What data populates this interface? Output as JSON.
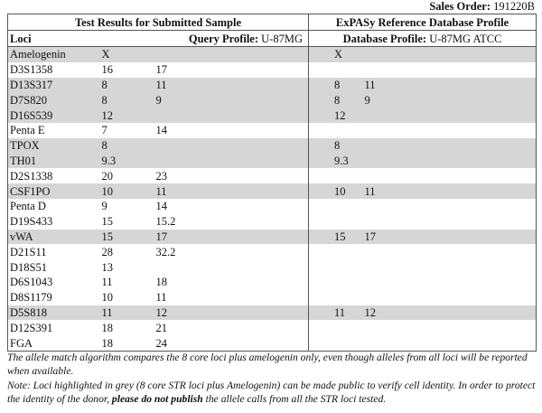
{
  "header": {
    "sales_order_label": "Sales Order:",
    "sales_order": "191220B"
  },
  "table": {
    "section_titles": [
      "Test Results for Submitted Sample",
      "ExPASy Reference Database Profile"
    ],
    "column_headers": {
      "loci": "Loci",
      "query_label": "Query Profile:",
      "query_name": "U-87MG",
      "database_label": "Database Profile:",
      "database_name": "U-87MG ATCC"
    },
    "rows": [
      {
        "locus": "Amelogenin",
        "query": [
          "X"
        ],
        "database": [
          "X"
        ],
        "highlight": true
      },
      {
        "locus": "D3S1358",
        "query": [
          "16",
          "17"
        ],
        "database": [],
        "highlight": false
      },
      {
        "locus": "D13S317",
        "query": [
          "8",
          "11"
        ],
        "database": [
          "8",
          "11"
        ],
        "highlight": true
      },
      {
        "locus": "D7S820",
        "query": [
          "8",
          "9"
        ],
        "database": [
          "8",
          "9"
        ],
        "highlight": true
      },
      {
        "locus": "D16S539",
        "query": [
          "12"
        ],
        "database": [
          "12"
        ],
        "highlight": true
      },
      {
        "locus": "Penta E",
        "query": [
          "7",
          "14"
        ],
        "database": [],
        "highlight": false
      },
      {
        "locus": "TPOX",
        "query": [
          "8"
        ],
        "database": [
          "8"
        ],
        "highlight": true
      },
      {
        "locus": "TH01",
        "query": [
          "9.3"
        ],
        "database": [
          "9.3"
        ],
        "highlight": true
      },
      {
        "locus": "D2S1338",
        "query": [
          "20",
          "23"
        ],
        "database": [],
        "highlight": false
      },
      {
        "locus": "CSF1PO",
        "query": [
          "10",
          "11"
        ],
        "database": [
          "10",
          "11"
        ],
        "highlight": true
      },
      {
        "locus": "Penta D",
        "query": [
          "9",
          "14"
        ],
        "database": [],
        "highlight": false
      },
      {
        "locus": "D19S433",
        "query": [
          "15",
          "15.2"
        ],
        "database": [],
        "highlight": false
      },
      {
        "locus": "vWA",
        "query": [
          "15",
          "17"
        ],
        "database": [
          "15",
          "17"
        ],
        "highlight": true
      },
      {
        "locus": "D21S11",
        "query": [
          "28",
          "32.2"
        ],
        "database": [],
        "highlight": false
      },
      {
        "locus": "D18S51",
        "query": [
          "13"
        ],
        "database": [],
        "highlight": false
      },
      {
        "locus": "D6S1043",
        "query": [
          "11",
          "18"
        ],
        "database": [],
        "highlight": false
      },
      {
        "locus": "D8S1179",
        "query": [
          "10",
          "11"
        ],
        "database": [],
        "highlight": false
      },
      {
        "locus": "D5S818",
        "query": [
          "11",
          "12"
        ],
        "database": [
          "11",
          "12"
        ],
        "highlight": true
      },
      {
        "locus": "D12S391",
        "query": [
          "18",
          "21"
        ],
        "database": [],
        "highlight": false
      },
      {
        "locus": "FGA",
        "query": [
          "18",
          "24"
        ],
        "database": [],
        "highlight": false
      }
    ]
  },
  "notes": [
    [
      "The allele match algorithm compares the 8 core loci plus amelogenin only, even though alleles from all loci will be reported when available."
    ],
    [
      "Note: Loci highlighted in grey (8 core STR loci plus Amelogenin) can be made public to verify cell identity. In order to protect the identity of the donor, ",
      "please do not publish",
      " the allele calls from all the STR loci tested."
    ]
  ]
}
